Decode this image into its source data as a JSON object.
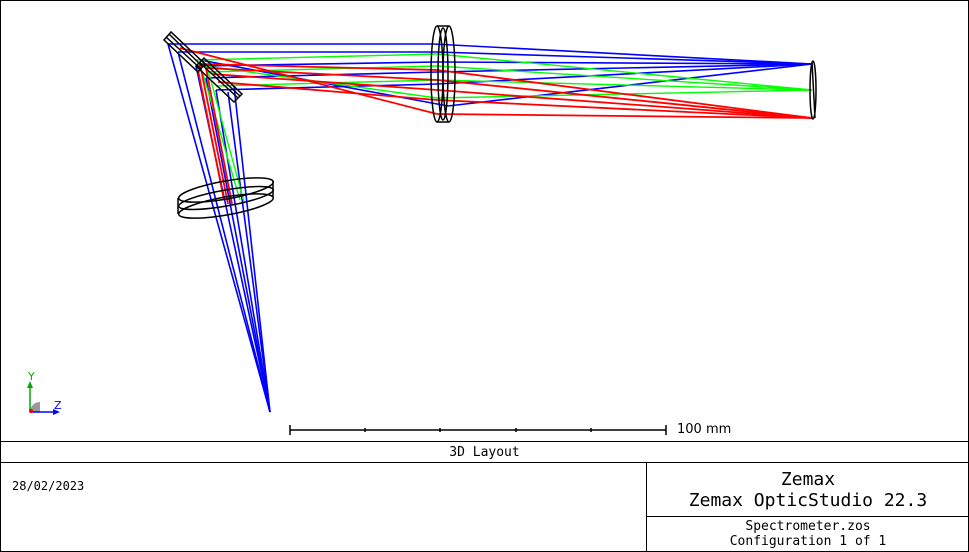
{
  "viewer": {
    "title": "3D Layout",
    "scale_bar": {
      "label": "100 mm",
      "length_mm": 100
    },
    "axes": {
      "y_label": "Y",
      "z_label": "Z"
    },
    "ray_colors": [
      "#0000ff",
      "#00ff00",
      "#ff0000"
    ]
  },
  "footer": {
    "date": "28/02/2023",
    "brand": "Zemax",
    "product": "Zemax OpticStudio 22.3",
    "file": "Spectrometer.zos",
    "configuration": "Configuration 1 of 1"
  }
}
